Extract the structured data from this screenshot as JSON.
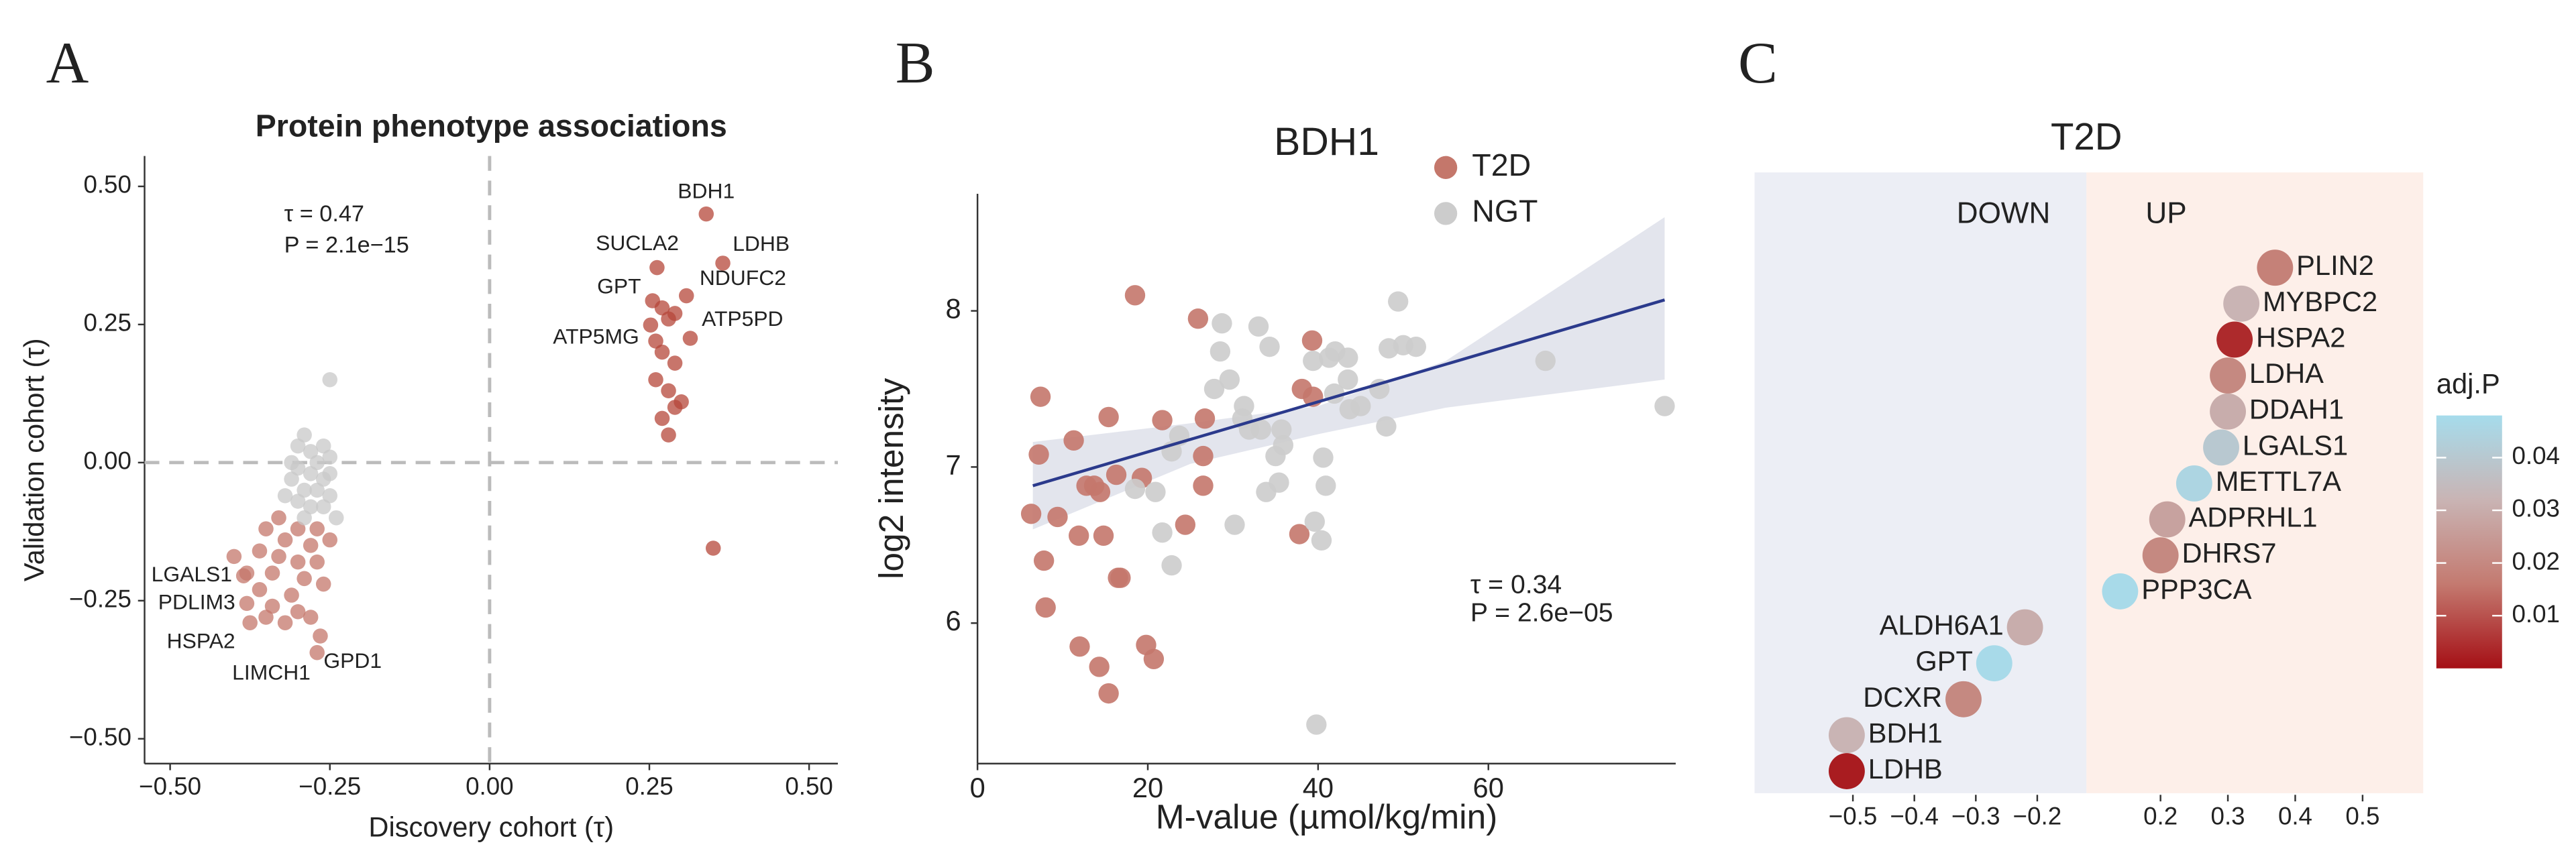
{
  "chart_data": [
    {
      "type": "scatter",
      "panel": "A",
      "title": "Protein phenotype associations",
      "x_label": "Discovery cohort (τ)",
      "y_label": "Validation cohort (τ)",
      "xlim": [
        -0.54,
        0.545
      ],
      "ylim": [
        -0.545,
        0.555
      ],
      "xticks": [
        {
          "value": -0.5,
          "label": "−0.50"
        },
        {
          "value": -0.25,
          "label": "−0.25"
        },
        {
          "value": 0,
          "label": "0.00"
        },
        0.25,
        {
          "value": 0.5,
          "label": "0.50"
        }
      ],
      "yticks": [
        {
          "value": -0.5,
          "label": "−0.50"
        },
        {
          "value": -0.25,
          "label": "−0.25"
        },
        {
          "value": 0,
          "label": "0.00"
        },
        0.25,
        {
          "value": 0.5,
          "label": "0.50"
        }
      ],
      "reference_lines": {
        "x": 0,
        "y": 0
      },
      "annotations": [
        "τ = 0.47",
        "P = 2.1e−15"
      ],
      "series": [
        {
          "color": "#b5473a",
          "x": [
            0.339,
            0.262,
            0.365,
            0.255,
            0.308,
            0.252,
            0.314,
            0.27,
            0.28,
            0.29,
            0.26,
            0.27,
            0.29,
            0.28,
            0.26,
            0.3,
            0.27,
            0.28,
            0.29,
            0.35
          ],
          "y": [
            0.45,
            0.353,
            0.361,
            0.293,
            0.302,
            0.249,
            0.225,
            0.28,
            0.26,
            0.27,
            0.22,
            0.2,
            0.18,
            0.13,
            0.15,
            0.11,
            0.08,
            0.05,
            0.1,
            -0.155
          ],
          "labels": [
            "BDH1",
            "SUCLA2",
            "LDHB",
            "GPT",
            "NDUFC2",
            "ATP5MG",
            "ATP5PD",
            null,
            null,
            null,
            null,
            null,
            null,
            null,
            null,
            null,
            null,
            null,
            null,
            null
          ]
        },
        {
          "color": "#c4776b",
          "x": [
            -0.385,
            -0.38,
            -0.375,
            -0.27,
            -0.265,
            -0.33,
            -0.3,
            -0.27,
            -0.35,
            -0.32,
            -0.28,
            -0.25,
            -0.36,
            -0.4,
            -0.33,
            -0.3,
            -0.27,
            -0.38,
            -0.34,
            -0.29,
            -0.26,
            -0.36,
            -0.31,
            -0.34,
            -0.3,
            -0.32,
            -0.28,
            -0.35
          ],
          "y": [
            -0.205,
            -0.255,
            -0.29,
            -0.344,
            -0.314,
            -0.1,
            -0.12,
            -0.12,
            -0.12,
            -0.14,
            -0.15,
            -0.14,
            -0.16,
            -0.17,
            -0.17,
            -0.18,
            -0.18,
            -0.2,
            -0.2,
            -0.21,
            -0.22,
            -0.23,
            -0.24,
            -0.26,
            -0.27,
            -0.29,
            -0.28,
            -0.28
          ],
          "labels": [
            "LGALS1",
            "PDLIM3",
            "HSPA2",
            "LIMCH1",
            "GPD1",
            null,
            null,
            null,
            null,
            null,
            null,
            null,
            null,
            null,
            null,
            null,
            null,
            null,
            null,
            null,
            null,
            null,
            null,
            null,
            null,
            null,
            null,
            null
          ]
        },
        {
          "color": "#c8c8c8",
          "x": [
            -0.25,
            -0.29,
            -0.3,
            -0.28,
            -0.26,
            -0.25,
            -0.27,
            -0.3,
            -0.28,
            -0.26,
            -0.31,
            -0.29,
            -0.27,
            -0.25,
            -0.3,
            -0.28,
            -0.26,
            -0.32,
            -0.24,
            -0.29,
            -0.31,
            -0.25
          ],
          "y": [
            0.15,
            0.05,
            0.03,
            0.02,
            0.03,
            0.01,
            0.0,
            -0.01,
            -0.02,
            -0.03,
            -0.03,
            -0.05,
            -0.05,
            -0.06,
            -0.07,
            -0.08,
            -0.08,
            -0.06,
            -0.1,
            -0.1,
            0.0,
            -0.02
          ]
        }
      ]
    },
    {
      "type": "scatter",
      "panel": "B",
      "title": "BDH1",
      "x_label": "M-value (µmol/kg/min)",
      "y_label": "log2 intensity",
      "xlim": [
        0,
        82
      ],
      "ylim": [
        5.1,
        8.75
      ],
      "xticks": [
        0,
        20,
        40,
        60
      ],
      "yticks": [
        6,
        7,
        8
      ],
      "legend": "upper right",
      "annotations": [
        "τ = 0.34",
        "P = 2.6e−05"
      ],
      "series": [
        {
          "name": "T2D",
          "color": "#c4776b",
          "x": [
            7.4,
            7.2,
            6.3,
            7.8,
            8,
            11.3,
            11.9,
            12,
            14.4,
            13.7,
            15.4,
            14.8,
            16.5,
            16.8,
            14.3,
            15.4,
            18.5,
            19.3,
            19.8,
            20.7,
            21.7,
            24.4,
            25.9,
            26.5,
            26.7,
            26.5,
            16.3,
            12.8,
            39.3,
            38.1,
            39.4,
            37.8,
            9.4
          ],
          "y": [
            7.45,
            7.08,
            6.7,
            6.4,
            6.1,
            7.17,
            6.56,
            5.85,
            6.84,
            6.88,
            7.32,
            6.56,
            6.29,
            6.29,
            5.72,
            5.55,
            8.1,
            6.93,
            5.86,
            5.77,
            7.3,
            6.63,
            7.95,
            7.07,
            7.31,
            6.88,
            6.95,
            6.88,
            7.81,
            7.5,
            7.45,
            6.57,
            6.68
          ]
        },
        {
          "name": "NGT",
          "color": "#cccccc",
          "x": [
            21.7,
            22.8,
            20.9,
            22.8,
            23.7,
            28.7,
            28.5,
            27.8,
            29.6,
            33,
            34.3,
            31.9,
            31.1,
            33.3,
            35.7,
            35.9,
            31.3,
            30.2,
            33.9,
            35.4,
            35,
            39.4,
            41.3,
            43.5,
            42,
            40.6,
            40.9,
            43.7,
            45,
            47.2,
            48,
            48.3,
            49.4,
            50,
            51.5,
            41.9,
            40.4,
            39.6,
            39.8,
            66.7,
            80.7,
            43.5,
            18.5
          ],
          "y": [
            6.58,
            6.37,
            6.84,
            7.1,
            7.2,
            7.92,
            7.74,
            7.5,
            7.56,
            7.9,
            7.77,
            7.24,
            7.31,
            7.24,
            7.24,
            7.14,
            7.39,
            6.63,
            6.84,
            6.9,
            7.07,
            7.68,
            7.7,
            7.7,
            7.74,
            7.06,
            6.88,
            7.37,
            7.39,
            7.5,
            7.26,
            7.76,
            8.06,
            7.78,
            7.77,
            7.47,
            6.53,
            6.65,
            5.35,
            7.68,
            7.39,
            7.56,
            6.86
          ]
        }
      ],
      "fit": {
        "color": "#2b3a8c",
        "x": [
          6.5,
          80.7
        ],
        "y": [
          6.88,
          8.07
        ]
      },
      "band": {
        "color": "#dcdee8",
        "x": [
          6.5,
          25,
          40,
          55,
          80.7
        ],
        "lower": [
          6.6,
          7.02,
          7.21,
          7.38,
          7.56
        ],
        "upper": [
          7.16,
          7.28,
          7.39,
          7.68,
          8.6
        ]
      }
    },
    {
      "type": "dot",
      "panel": "C",
      "title": "T2D",
      "categories": [
        "PLIN2",
        "MYBPC2",
        "HSPA2",
        "LDHA",
        "DDAH1",
        "LGALS1",
        "METTL7A",
        "ADPRHL1",
        "DHRS7",
        "PPP3CA",
        "ALDH6A1",
        "GPT",
        "DCXR",
        "BDH1",
        "LDHB"
      ],
      "values": [
        0.37,
        0.32,
        0.31,
        0.3,
        0.3,
        0.29,
        0.25,
        0.21,
        0.2,
        0.14,
        -0.22,
        -0.27,
        -0.32,
        -0.51,
        -0.51
      ],
      "p_values": [
        0.018,
        0.032,
        0.004,
        0.02,
        0.03,
        0.04,
        0.045,
        0.027,
        0.02,
        0.047,
        0.03,
        0.047,
        0.02,
        0.032,
        0.002
      ],
      "regions": [
        {
          "label": "DOWN",
          "xlim": [
            -0.66,
            -0.12
          ],
          "color": "#eceef5"
        },
        {
          "label": "UP",
          "xlim": [
            0.09,
            0.59
          ],
          "color": "#fdefe9"
        }
      ],
      "xticks": [
        {
          "value": -0.5,
          "label": "−0.5"
        },
        {
          "value": -0.4,
          "label": "−0.4"
        },
        {
          "value": -0.3,
          "label": "−0.3"
        },
        {
          "value": -0.2,
          "label": "−0.2"
        },
        0.2,
        0.3,
        0.4,
        0.5
      ],
      "colorbar": {
        "label": "adj.P",
        "lim": [
          0,
          0.048
        ],
        "ticks": [
          0.01,
          0.02,
          0.03,
          0.04
        ],
        "colors": [
          "#a50f15",
          "#c47a70",
          "#c9b4b4",
          "#a6dcec"
        ]
      }
    }
  ]
}
